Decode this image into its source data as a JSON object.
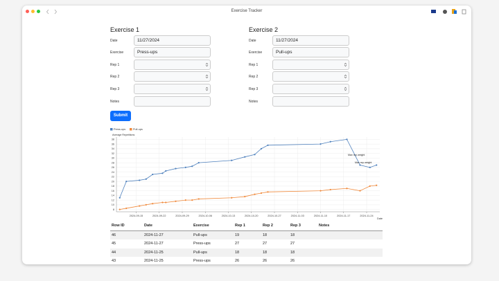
{
  "window": {
    "title": "Exercise Tracker"
  },
  "form": {
    "submit": "Submit",
    "columns": [
      {
        "heading": "Exercise 1",
        "date_label": "Date",
        "date": "11/27/2024",
        "exercise_label": "Exercise",
        "exercise": "Press-ups",
        "rep1_label": "Rep 1",
        "rep2_label": "Rep 2",
        "rep3_label": "Rep 3",
        "notes_label": "Notes"
      },
      {
        "heading": "Exercise 2",
        "date_label": "Date",
        "date": "11/27/2024",
        "exercise_label": "Exercise",
        "exercise": "Pull-ups",
        "rep1_label": "Rep 1",
        "rep2_label": "Rep 2",
        "rep3_label": "Rep 3",
        "notes_label": "Notes"
      }
    ]
  },
  "chart_data": {
    "type": "line",
    "y_label": "Average Repetitions",
    "x_label": "Date",
    "x": [
      "2024-09-10",
      "2024-09-12",
      "2024-09-16",
      "2024-09-18",
      "2024-09-20",
      "2024-09-23",
      "2024-09-24",
      "2024-09-27",
      "2024-09-30",
      "2024-10-02",
      "2024-10-04",
      "2024-10-14",
      "2024-10-18",
      "2024-10-21",
      "2024-10-23",
      "2024-10-25",
      "2024-11-10",
      "2024-11-13",
      "2024-11-18",
      "2024-11-22",
      "2024-11-25",
      "2024-11-27"
    ],
    "series": [
      {
        "name": "Press-ups",
        "color": "#4f81bd",
        "values": [
          13,
          20,
          20.5,
          21,
          23,
          23.5,
          24.5,
          25.5,
          26,
          26.5,
          28,
          29,
          30.5,
          31.5,
          34,
          35.5,
          36,
          37,
          38,
          27,
          26,
          27
        ]
      },
      {
        "name": "Pull-ups",
        "color": "#f08a3c",
        "values": [
          8,
          8.5,
          9.5,
          10,
          10.5,
          11,
          11,
          11.5,
          12,
          12,
          12.5,
          13,
          13.5,
          14.5,
          15,
          15.5,
          16,
          16.5,
          17,
          16,
          18,
          18.33
        ]
      }
    ],
    "xlim": [
      "2024-09-09",
      "2024-11-28"
    ],
    "xticks": [
      "2024-09-15",
      "2024-09-22",
      "2024-09-29",
      "2024-10-06",
      "2024-10-13",
      "2024-10-20",
      "2024-10-27",
      "2024-11-03",
      "2024-11-10",
      "2024-11-17",
      "2024-11-24"
    ],
    "ylim": [
      7,
      39
    ],
    "yticks": [
      8,
      10,
      12,
      14,
      16,
      18,
      20,
      22,
      24,
      26,
      28,
      30,
      32,
      34,
      36,
      38
    ],
    "grid": true,
    "annotations": [
      "Max rep weight",
      "Max rep weight"
    ]
  },
  "table": {
    "header": [
      "Row ID",
      "Date",
      "Exercise",
      "Rep 1",
      "Rep 2",
      "Rep 3",
      "Notes"
    ],
    "rows": [
      [
        "46",
        "2024-11-27",
        "Pull-ups",
        "19",
        "18",
        "18"
      ],
      [
        "45",
        "2024-11-27",
        "Press-ups",
        "27",
        "27",
        "27"
      ],
      [
        "44",
        "2024-11-25",
        "Pull-ups",
        "18",
        "18",
        "18"
      ],
      [
        "43",
        "2024-11-25",
        "Press-ups",
        "26",
        "26",
        "26"
      ]
    ]
  }
}
